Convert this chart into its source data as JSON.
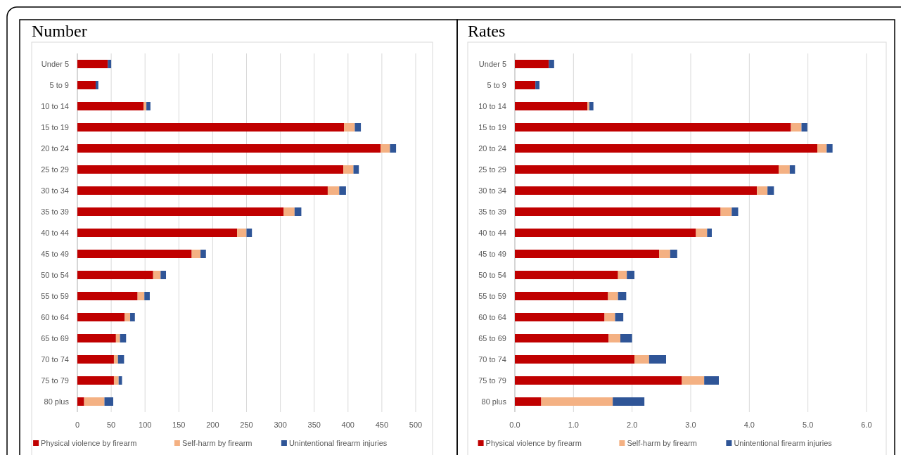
{
  "chart_data": [
    {
      "type": "bar",
      "title": "Number",
      "orientation": "horizontal",
      "stacked": true,
      "grid": "x",
      "legend": "bottom",
      "categories": [
        "Under 5",
        "5 to 9",
        "10 to 14",
        "15 to 19",
        "20 to 24",
        "25 to 29",
        "30 to 34",
        "35 to 39",
        "40 to 44",
        "45 to 49",
        "50 to 54",
        "55 to 59",
        "60 to 64",
        "65 to 69",
        "70 to 74",
        "75 to 79",
        "80 plus"
      ],
      "xlim": [
        0,
        500
      ],
      "xticks": [
        0,
        50,
        100,
        150,
        200,
        250,
        300,
        350,
        400,
        450,
        500
      ],
      "series": [
        {
          "name": "Physical violence by firearm",
          "color": "#c00000",
          "values": [
            45,
            27,
            98,
            394,
            448,
            393,
            370,
            305,
            236,
            169,
            112,
            89,
            70,
            57,
            54,
            54,
            10
          ]
        },
        {
          "name": "Self-harm by firearm",
          "color": "#f4b183",
          "values": [
            0,
            0,
            4,
            16,
            14,
            15,
            17,
            16,
            14,
            13,
            11,
            10,
            8,
            6,
            6,
            7,
            30
          ]
        },
        {
          "name": "Unintentional firearm injuries",
          "color": "#2f5597",
          "values": [
            5,
            4,
            6,
            9,
            9,
            8,
            10,
            10,
            8,
            8,
            8,
            8,
            7,
            9,
            9,
            5,
            13
          ]
        }
      ]
    },
    {
      "type": "bar",
      "title": "Rates",
      "orientation": "horizontal",
      "stacked": true,
      "grid": "x",
      "legend": "bottom",
      "categories": [
        "Under 5",
        "5 to 9",
        "10 to 14",
        "15 to 19",
        "20 to 24",
        "25 to 29",
        "30 to 34",
        "35 to 39",
        "40 to 44",
        "45 to 49",
        "50 to 54",
        "55 to 59",
        "60 to 64",
        "65 to 69",
        "70 to 74",
        "75 to 79",
        "80 plus"
      ],
      "xlim": [
        0,
        6
      ],
      "xticks": [
        {
          "value": 0,
          "label": "0.0"
        },
        {
          "value": 1,
          "label": "1.0"
        },
        {
          "value": 2,
          "label": "2.0"
        },
        {
          "value": 3,
          "label": "3.0"
        },
        {
          "value": 4,
          "label": "4.0"
        },
        {
          "value": 5,
          "label": "5.0"
        },
        {
          "value": 6,
          "label": "6.0"
        }
      ],
      "series": [
        {
          "name": "Physical violence by firearm",
          "color": "#c00000",
          "values": [
            0.58,
            0.35,
            1.24,
            4.71,
            5.16,
            4.5,
            4.13,
            3.51,
            3.09,
            2.46,
            1.76,
            1.59,
            1.53,
            1.6,
            2.04,
            2.85,
            0.45
          ]
        },
        {
          "name": "Self-harm by firearm",
          "color": "#f4b183",
          "values": [
            0,
            0,
            0.03,
            0.18,
            0.16,
            0.19,
            0.18,
            0.19,
            0.19,
            0.19,
            0.15,
            0.17,
            0.18,
            0.2,
            0.25,
            0.38,
            1.22
          ]
        },
        {
          "name": "Unintentional firearm injuries",
          "color": "#2f5597",
          "values": [
            0.09,
            0.07,
            0.07,
            0.1,
            0.1,
            0.09,
            0.11,
            0.11,
            0.08,
            0.12,
            0.13,
            0.14,
            0.14,
            0.2,
            0.29,
            0.25,
            0.54
          ]
        }
      ]
    }
  ]
}
